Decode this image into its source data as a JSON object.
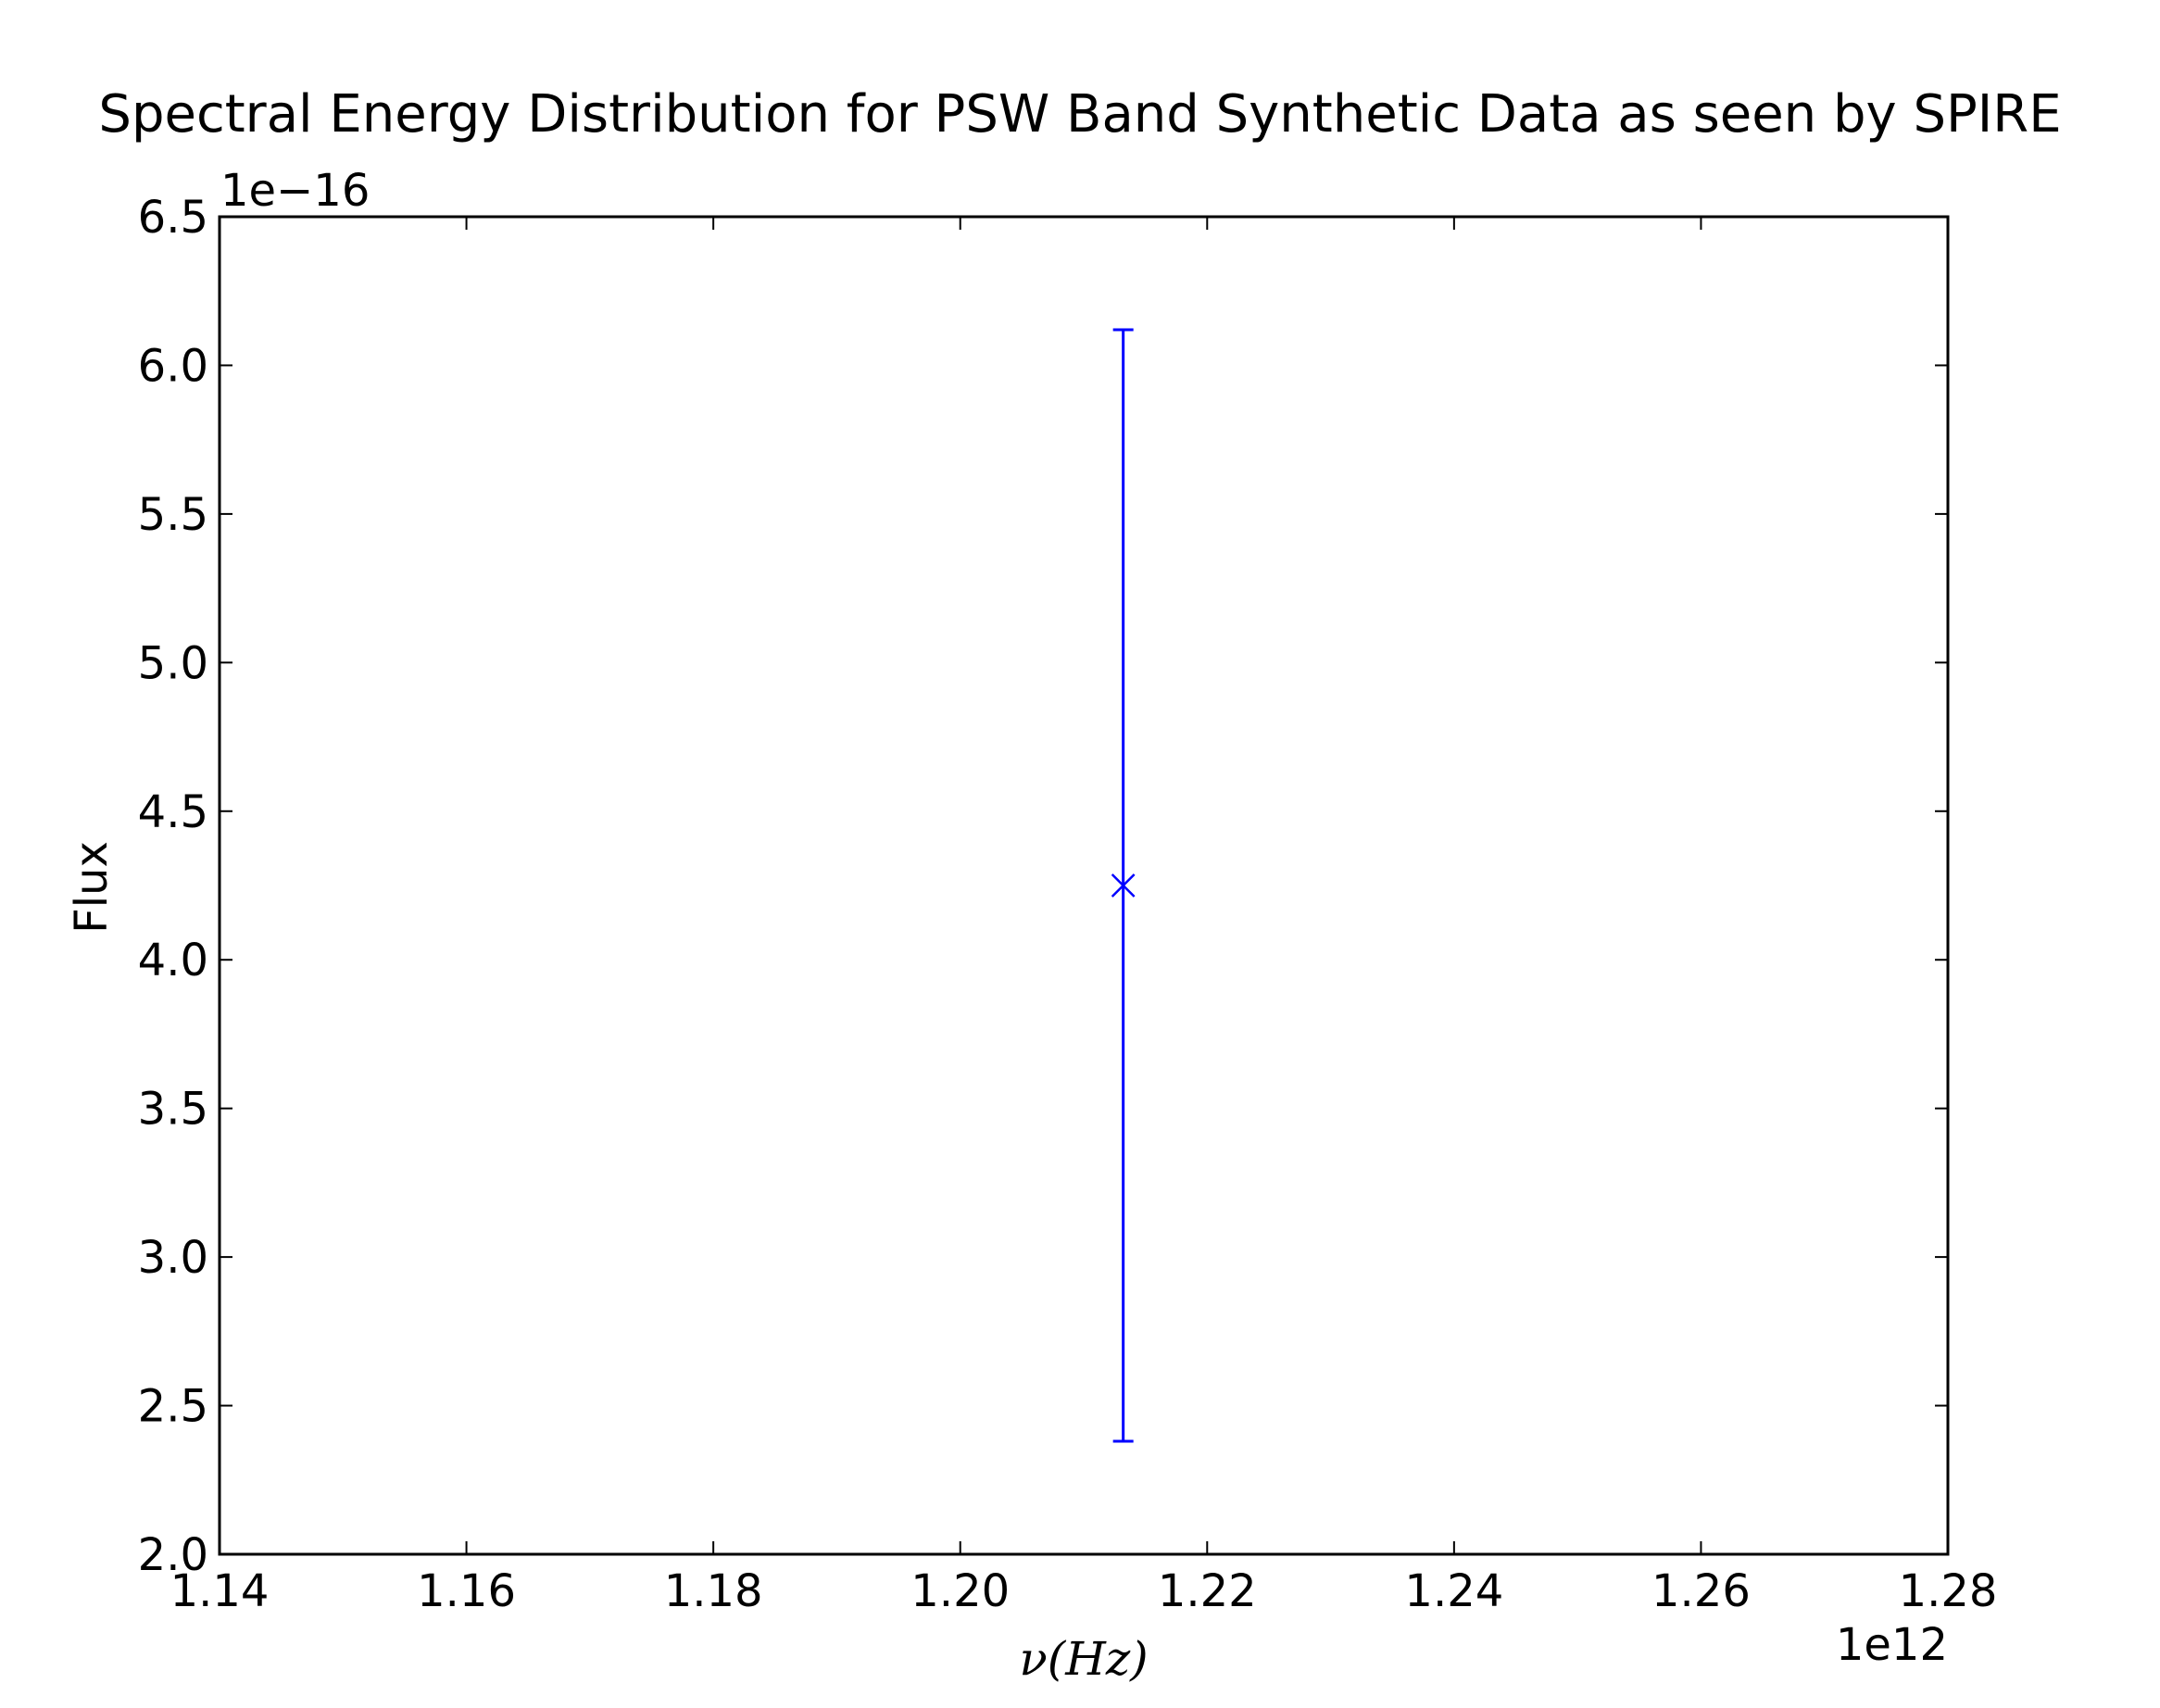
{
  "chart_data": {
    "type": "scatter",
    "title": "Spectral Energy Distribution for PSW Band Synthetic Data as seen by SPIRE",
    "xlabel": "ν(Hz)",
    "ylabel": "Flux",
    "x_offset_label": "1e12",
    "y_offset_label": "1e−16",
    "xlim": [
      1.14,
      1.28
    ],
    "ylim": [
      2.0,
      6.5
    ],
    "x_ticks": [
      "1.14",
      "1.16",
      "1.18",
      "1.20",
      "1.22",
      "1.24",
      "1.26",
      "1.28"
    ],
    "y_ticks": [
      "2.0",
      "2.5",
      "3.0",
      "3.5",
      "4.0",
      "4.5",
      "5.0",
      "5.5",
      "6.0",
      "6.5"
    ],
    "grid": false,
    "series": [
      {
        "marker": "x",
        "color": "#0000ff",
        "points": [
          {
            "x": 1.2132,
            "y": 4.25,
            "yerr_low": 2.38,
            "yerr_high": 6.12
          }
        ]
      }
    ]
  }
}
